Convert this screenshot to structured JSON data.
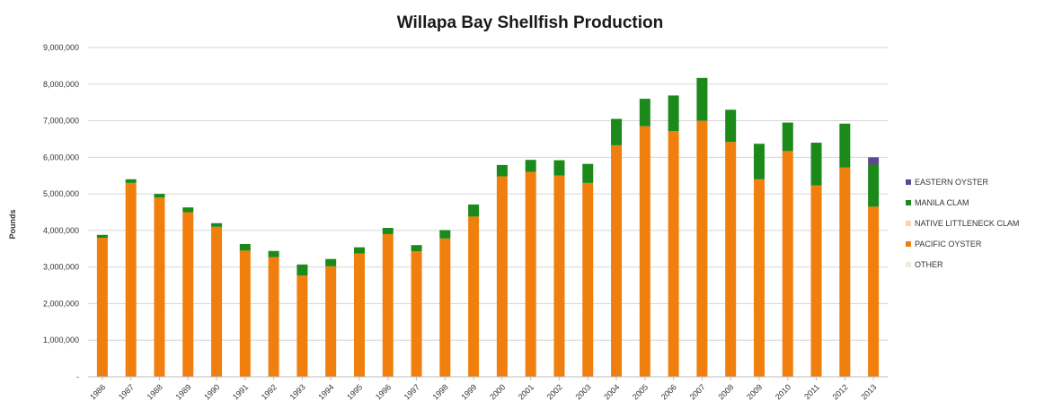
{
  "chart_data": {
    "type": "bar",
    "stacked": true,
    "title": "Willapa Bay Shellfish Production",
    "xlabel": "",
    "ylabel": "Pounds",
    "ylim": [
      0,
      9000000
    ],
    "yticks": [
      0,
      1000000,
      2000000,
      3000000,
      4000000,
      5000000,
      6000000,
      7000000,
      8000000,
      9000000
    ],
    "ytick_labels": [
      "-",
      "1,000,000",
      "2,000,000",
      "3,000,000",
      "4,000,000",
      "5,000,000",
      "6,000,000",
      "7,000,000",
      "8,000,000",
      "9,000,000"
    ],
    "grid": true,
    "legend_position": "right",
    "categories": [
      "1986",
      "1987",
      "1988",
      "1989",
      "1990",
      "1991",
      "1992",
      "1993",
      "1994",
      "1995",
      "1996",
      "1997",
      "1998",
      "1999",
      "2000",
      "2001",
      "2002",
      "2003",
      "2004",
      "2005",
      "2006",
      "2007",
      "2008",
      "2009",
      "2010",
      "2011",
      "2012",
      "2013"
    ],
    "series": [
      {
        "name": "PACIFIC OYSTER",
        "color": "#f07f0e",
        "values": [
          3800000,
          5300000,
          4900000,
          4500000,
          4100000,
          3450000,
          3270000,
          2770000,
          3020000,
          3370000,
          3900000,
          3430000,
          3780000,
          4380000,
          5480000,
          5600000,
          5500000,
          5300000,
          6330000,
          6850000,
          6720000,
          7000000,
          6420000,
          5400000,
          6170000,
          5230000,
          5720000,
          4650000
        ]
      },
      {
        "name": "NATIVE LITTLENECK CLAM",
        "color": "#f5d3b5",
        "values": [
          0,
          0,
          0,
          0,
          0,
          0,
          0,
          0,
          0,
          0,
          0,
          0,
          0,
          0,
          0,
          0,
          0,
          0,
          0,
          0,
          0,
          0,
          0,
          0,
          0,
          0,
          0,
          0
        ]
      },
      {
        "name": "MANILA CLAM",
        "color": "#1b8a1b",
        "values": [
          80000,
          100000,
          100000,
          130000,
          100000,
          180000,
          170000,
          300000,
          200000,
          170000,
          170000,
          170000,
          230000,
          330000,
          310000,
          330000,
          420000,
          520000,
          720000,
          750000,
          970000,
          1170000,
          880000,
          970000,
          780000,
          1170000,
          1200000,
          1150000
        ]
      },
      {
        "name": "EASTERN OYSTER",
        "color": "#5d4a8e",
        "values": [
          0,
          0,
          0,
          0,
          0,
          0,
          0,
          0,
          0,
          0,
          0,
          0,
          0,
          0,
          0,
          0,
          0,
          0,
          0,
          0,
          0,
          0,
          0,
          0,
          0,
          0,
          0,
          200000
        ]
      },
      {
        "name": "OTHER",
        "color": "#e8eedf",
        "values": [
          0,
          0,
          0,
          0,
          0,
          0,
          0,
          0,
          0,
          0,
          0,
          0,
          0,
          0,
          0,
          0,
          0,
          0,
          0,
          0,
          0,
          0,
          0,
          0,
          0,
          0,
          0,
          0
        ]
      }
    ],
    "legend_order": [
      "EASTERN OYSTER",
      "MANILA CLAM",
      "NATIVE LITTLENECK CLAM",
      "PACIFIC OYSTER",
      "OTHER"
    ]
  }
}
